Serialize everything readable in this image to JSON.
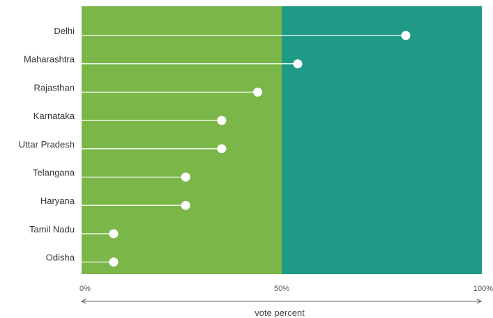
{
  "chart_data": {
    "type": "dot",
    "categories": [
      "Delhi",
      "Maharashtra",
      "Rajasthan",
      "Karnataka",
      "Uttar Pradesh",
      "Telangana",
      "Haryana",
      "Tamil Nadu",
      "Odisha"
    ],
    "values": [
      81,
      54,
      44,
      35,
      35,
      26,
      26,
      8,
      8
    ],
    "xlabel": "vote percent",
    "xlim": [
      0,
      100
    ],
    "x_ticks": [
      "0%",
      "50%",
      "100%"
    ],
    "regions": [
      {
        "from": 0,
        "to": 50,
        "color": "#7ab648"
      },
      {
        "from": 50,
        "to": 100,
        "color": "#1f9a86"
      }
    ],
    "line_color": "#ffffff",
    "dot_color": "#ffffff",
    "grid": false
  }
}
